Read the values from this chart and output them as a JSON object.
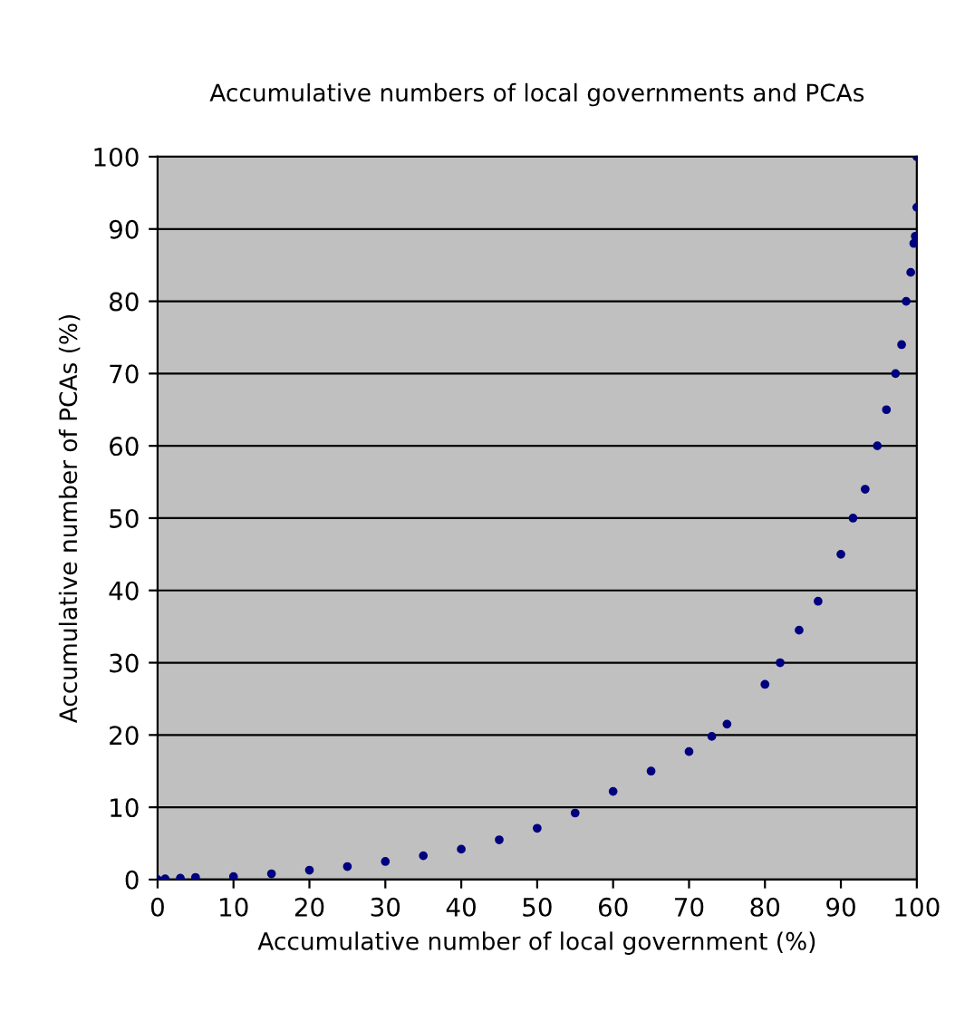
{
  "chart_data": {
    "type": "scatter",
    "title": "Accumulative numbers of local governments and PCAs",
    "xlabel": "Accumulative number of local government (%)",
    "ylabel": "Accumulative number of PCAs (%)",
    "series": [
      {
        "color": "#000080",
        "x": [
          0,
          1,
          3,
          5,
          10,
          15,
          20,
          25,
          30,
          35,
          40,
          45,
          50,
          55,
          60,
          65,
          70,
          73,
          75,
          80,
          82,
          84.5,
          87,
          90,
          91.6,
          93.2,
          94.8,
          96,
          97.2,
          98,
          98.6,
          99.2,
          99.6,
          99.8,
          100,
          100
        ],
        "values": [
          0,
          0.1,
          0.2,
          0.3,
          0.4,
          0.8,
          1.3,
          1.8,
          2.5,
          3.3,
          4.2,
          5.5,
          7.1,
          9.2,
          12.2,
          15,
          17.7,
          19.8,
          21.5,
          27,
          30,
          34.5,
          38.5,
          45,
          50,
          54,
          60,
          65,
          70,
          74,
          80,
          84,
          88,
          89,
          93,
          100
        ]
      }
    ],
    "xlim": [
      0,
      100
    ],
    "ylim": [
      0,
      100
    ],
    "xticks": [
      0,
      10,
      20,
      30,
      40,
      50,
      60,
      70,
      80,
      90,
      100
    ],
    "yticks": [
      0,
      10,
      20,
      30,
      40,
      50,
      60,
      70,
      80,
      90,
      100
    ],
    "grid": "y",
    "marker": "circle"
  }
}
